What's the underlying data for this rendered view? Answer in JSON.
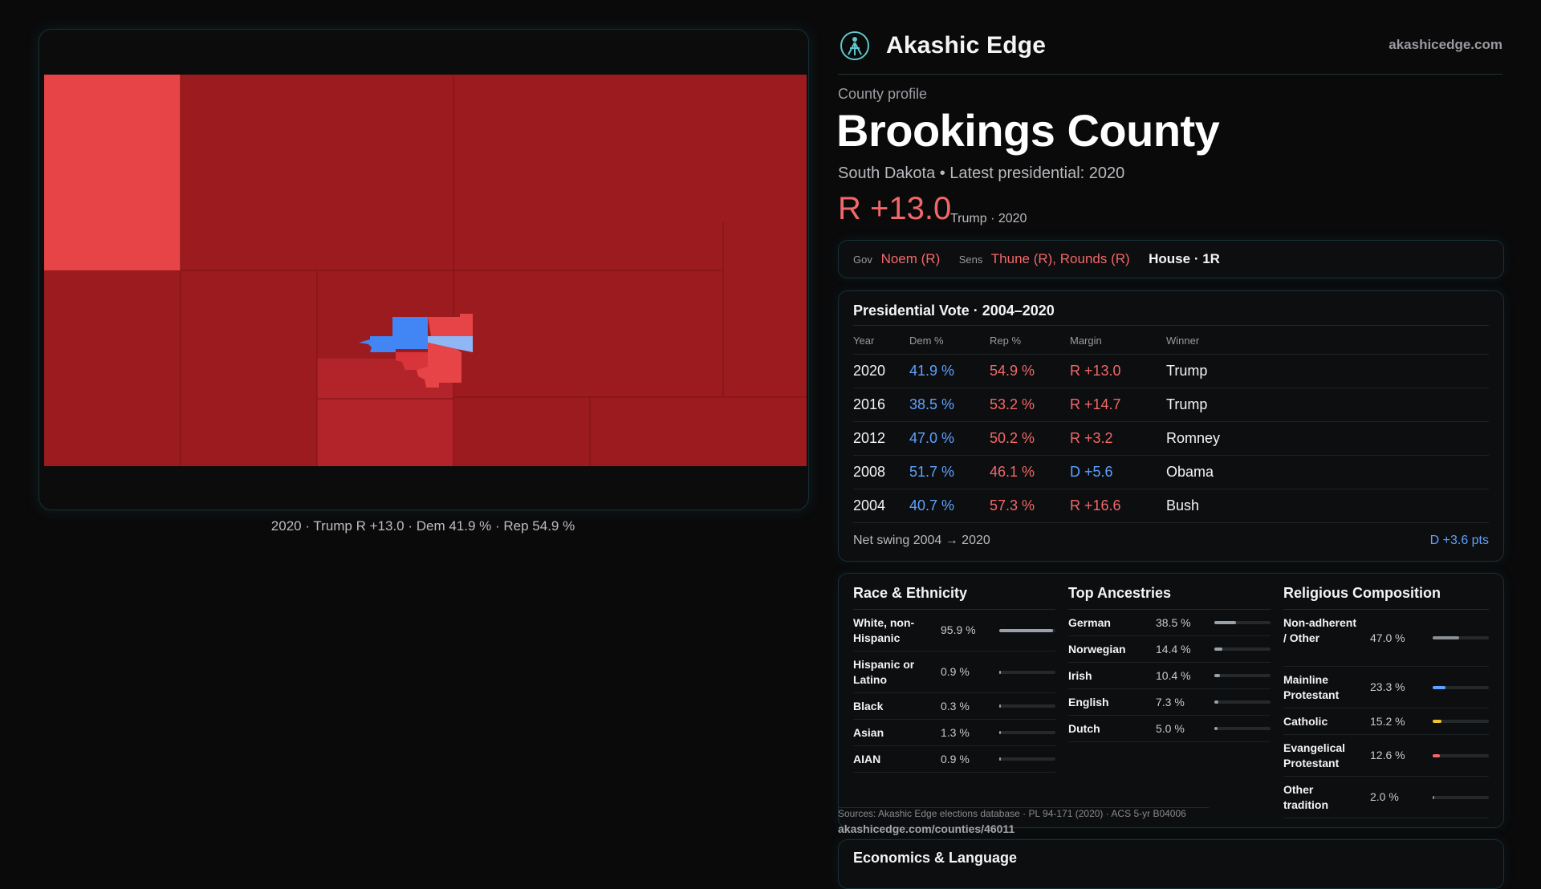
{
  "brand": {
    "name": "Akashic Edge",
    "site": "akashicedge.com"
  },
  "profile": {
    "kicker": "County profile",
    "county": "Brookings County",
    "subtitle": "South Dakota • Latest presidential: 2020",
    "margin": "R +13.0",
    "margin_note": "Trump · 2020"
  },
  "map": {
    "caption": "2020 · Trump R +13.0 · Dem 41.9 % · Rep 54.9 %",
    "colors": {
      "strong_rep": "#9b1b1f",
      "mid_rep": "#b3232a",
      "light_rep": "#e64446",
      "dem": "#4285f4",
      "light_dem": "#8fb7f6",
      "bg": "#0c0c0d"
    }
  },
  "officials": {
    "gov_label": "Gov",
    "gov": "Noem (R)",
    "sens_label": "Sens",
    "sens": "Thune (R), Rounds (R)",
    "house": "House · 1R"
  },
  "presidential": {
    "title": "Presidential Vote · 2004–2020",
    "headers": [
      "Year",
      "Dem %",
      "Rep %",
      "Margin",
      "Winner"
    ],
    "rows": [
      {
        "year": "2020",
        "dem": "41.9 %",
        "rep": "54.9 %",
        "margin": "R +13.0",
        "winner": "Trump",
        "party": "rep"
      },
      {
        "year": "2016",
        "dem": "38.5 %",
        "rep": "53.2 %",
        "margin": "R +14.7",
        "winner": "Trump",
        "party": "rep"
      },
      {
        "year": "2012",
        "dem": "47.0 %",
        "rep": "50.2 %",
        "margin": "R +3.2",
        "winner": "Romney",
        "party": "rep"
      },
      {
        "year": "2008",
        "dem": "51.7 %",
        "rep": "46.1 %",
        "margin": "D +5.6",
        "winner": "Obama",
        "party": "dem"
      },
      {
        "year": "2004",
        "dem": "40.7 %",
        "rep": "57.3 %",
        "margin": "R +16.6",
        "winner": "Bush",
        "party": "rep"
      }
    ],
    "swing_label": "Net swing 2004 → 2020",
    "swing_value": "D +3.6 pts"
  },
  "race": {
    "title": "Race & Ethnicity",
    "items": [
      {
        "name": "White, non-Hispanic",
        "pct": "95.9 %",
        "share": 0.959,
        "color": "#9aa1a8"
      },
      {
        "name": "Hispanic or Latino",
        "pct": "0.9 %",
        "share": 0.009,
        "color": "#9aa1a8"
      },
      {
        "name": "Black",
        "pct": "0.3 %",
        "share": 0.003,
        "color": "#9aa1a8"
      },
      {
        "name": "Asian",
        "pct": "1.3 %",
        "share": 0.013,
        "color": "#9aa1a8"
      },
      {
        "name": "AIAN",
        "pct": "0.9 %",
        "share": 0.009,
        "color": "#9aa1a8"
      }
    ]
  },
  "ancestry": {
    "title": "Top Ancestries",
    "items": [
      {
        "name": "German",
        "pct": "38.5 %",
        "share": 0.385,
        "color": "#9aa1a8"
      },
      {
        "name": "Norwegian",
        "pct": "14.4 %",
        "share": 0.144,
        "color": "#9aa1a8"
      },
      {
        "name": "Irish",
        "pct": "10.4 %",
        "share": 0.104,
        "color": "#9aa1a8"
      },
      {
        "name": "English",
        "pct": "7.3 %",
        "share": 0.073,
        "color": "#9aa1a8"
      },
      {
        "name": "Dutch",
        "pct": "5.0 %",
        "share": 0.05,
        "color": "#9aa1a8"
      }
    ]
  },
  "religion": {
    "title": "Religious Composition",
    "items": [
      {
        "name": "Non-adherent / Other",
        "pct": "47.0 %",
        "share": 0.47,
        "color": "#8a9096"
      },
      {
        "name": "Mainline Protestant",
        "pct": "23.3 %",
        "share": 0.233,
        "color": "#5ea2ff"
      },
      {
        "name": "Catholic",
        "pct": "15.2 %",
        "share": 0.152,
        "color": "#f2c230"
      },
      {
        "name": "Evangelical Protestant",
        "pct": "12.6 %",
        "share": 0.126,
        "color": "#f2686a"
      },
      {
        "name": "Other tradition",
        "pct": "2.0 %",
        "share": 0.02,
        "color": "#8a9096"
      }
    ]
  },
  "sources": {
    "text": "Sources: Akashic Edge elections database · PL 94-171 (2020) · ACS 5-yr B04006",
    "url": "akashicedge.com/counties/46011"
  },
  "economics": {
    "title": "Economics & Language"
  }
}
